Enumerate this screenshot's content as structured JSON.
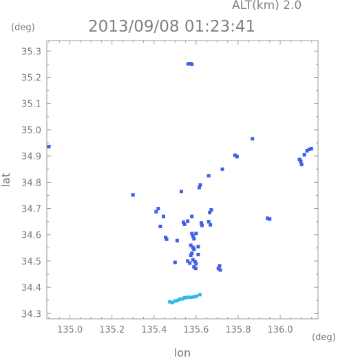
{
  "header": {
    "altitude": "ALT(km) 2.0",
    "timestamp": "2013/09/08 01:23:41"
  },
  "chart_data": {
    "type": "scatter",
    "title": "2013/09/08 01:23:41",
    "xlabel": "lon",
    "ylabel": "lat",
    "x_unit": "(deg)",
    "y_unit": "(deg)",
    "xlim": [
      134.89,
      136.18
    ],
    "ylim": [
      34.28,
      35.34
    ],
    "xticks": [
      "135.0",
      "135.2",
      "135.4",
      "135.6",
      "135.8",
      "136.0"
    ],
    "yticks": [
      "34.3",
      "34.4",
      "34.5",
      "34.6",
      "34.7",
      "34.8",
      "34.9",
      "35.0",
      "35.1",
      "35.2",
      "35.3"
    ],
    "colors": {
      "echo": "#3f5fe8",
      "weak_echo": "#2fb8e8",
      "axis": "#999999"
    },
    "series": [
      {
        "color": "#3f5fe8",
        "points": [
          [
            135.562,
            35.251
          ],
          [
            135.572,
            35.252
          ],
          [
            135.58,
            35.25
          ],
          [
            134.9,
            34.936
          ],
          [
            136.138,
            34.925
          ],
          [
            136.148,
            34.928
          ],
          [
            136.128,
            34.92
          ],
          [
            136.115,
            34.905
          ],
          [
            136.098,
            34.88
          ],
          [
            136.102,
            34.868
          ],
          [
            136.092,
            34.887
          ],
          [
            135.785,
            34.903
          ],
          [
            135.795,
            34.898
          ],
          [
            135.868,
            34.966
          ],
          [
            135.725,
            34.85
          ],
          [
            135.66,
            34.825
          ],
          [
            135.62,
            34.79
          ],
          [
            135.615,
            34.78
          ],
          [
            135.3,
            34.752
          ],
          [
            135.53,
            34.765
          ],
          [
            135.42,
            34.7
          ],
          [
            135.41,
            34.688
          ],
          [
            135.672,
            34.695
          ],
          [
            135.665,
            34.685
          ],
          [
            135.445,
            34.67
          ],
          [
            135.58,
            34.67
          ],
          [
            135.54,
            34.648
          ],
          [
            135.545,
            34.64
          ],
          [
            135.56,
            34.652
          ],
          [
            135.625,
            34.645
          ],
          [
            135.628,
            34.636
          ],
          [
            135.66,
            34.65
          ],
          [
            135.668,
            34.638
          ],
          [
            135.43,
            34.632
          ],
          [
            135.94,
            34.663
          ],
          [
            135.95,
            34.66
          ],
          [
            135.58,
            34.605
          ],
          [
            135.585,
            34.595
          ],
          [
            135.59,
            34.585
          ],
          [
            135.6,
            34.605
          ],
          [
            135.455,
            34.59
          ],
          [
            135.46,
            34.583
          ],
          [
            135.51,
            34.578
          ],
          [
            135.575,
            34.56
          ],
          [
            135.585,
            34.552
          ],
          [
            135.59,
            34.545
          ],
          [
            135.61,
            34.555
          ],
          [
            135.58,
            34.53
          ],
          [
            135.575,
            34.522
          ],
          [
            135.61,
            34.525
          ],
          [
            135.585,
            34.505
          ],
          [
            135.595,
            34.498
          ],
          [
            135.6,
            34.49
          ],
          [
            135.56,
            34.5
          ],
          [
            135.57,
            34.492
          ],
          [
            135.5,
            34.495
          ],
          [
            135.59,
            34.478
          ],
          [
            135.598,
            34.472
          ],
          [
            135.712,
            34.482
          ],
          [
            135.706,
            34.472
          ],
          [
            135.715,
            34.466
          ]
        ]
      },
      {
        "color": "#2fb8e8",
        "points": [
          [
            135.475,
            34.345
          ],
          [
            135.488,
            34.342
          ],
          [
            135.5,
            34.348
          ],
          [
            135.512,
            34.35
          ],
          [
            135.522,
            34.355
          ],
          [
            135.535,
            34.356
          ],
          [
            135.545,
            34.36
          ],
          [
            135.558,
            34.362
          ],
          [
            135.575,
            34.362
          ],
          [
            135.59,
            34.364
          ],
          [
            135.602,
            34.366
          ],
          [
            135.618,
            34.372
          ]
        ]
      }
    ]
  }
}
